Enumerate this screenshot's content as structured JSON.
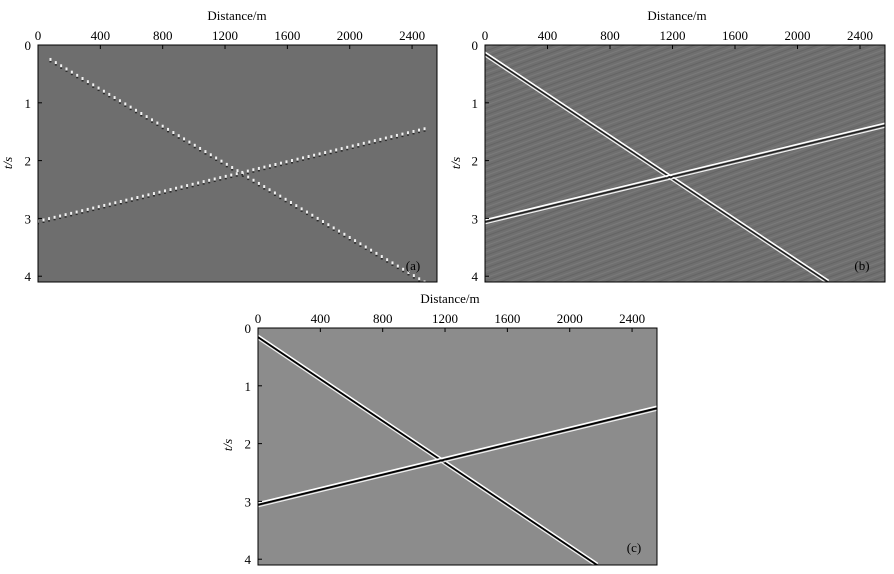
{
  "figure": {
    "x_axis_label": "Distance/m",
    "y_axis_label": "t/s"
  },
  "chart_data": [
    {
      "type": "seismic_section",
      "panel_label": "(a)",
      "style": "sparse_sampled_dots",
      "xlabel": "Distance/m",
      "ylabel": "t/s",
      "xlim": [
        0,
        2560
      ],
      "ylim": [
        4.1,
        0
      ],
      "x_ticks": [
        0,
        400,
        800,
        1200,
        1600,
        2000,
        2400
      ],
      "y_ticks": [
        0,
        1,
        2,
        3,
        4
      ],
      "background": "#6e6e6e",
      "events": [
        {
          "name": "",
          "x": [
            80,
            2480
          ],
          "t": [
            0.25,
            4.1
          ]
        },
        {
          "name": "",
          "x": [
            0,
            2480
          ],
          "t": [
            3.05,
            1.45
          ]
        }
      ]
    },
    {
      "type": "seismic_section",
      "panel_label": "(b)",
      "style": "noisy_continuous",
      "xlabel": "Distance/m",
      "ylabel": "t/s",
      "xlim": [
        0,
        2560
      ],
      "ylim": [
        4.1,
        0
      ],
      "x_ticks": [
        0,
        400,
        800,
        1200,
        1600,
        2000,
        2400
      ],
      "y_ticks": [
        0,
        1,
        2,
        3,
        4
      ],
      "background": "#6f6f6f",
      "events": [
        {
          "name": "",
          "x": [
            0,
            2200
          ],
          "t": [
            0.15,
            4.1
          ]
        },
        {
          "name": "",
          "x": [
            0,
            2560
          ],
          "t": [
            3.05,
            1.38
          ]
        }
      ]
    },
    {
      "type": "seismic_section",
      "panel_label": "(c)",
      "style": "reconstructed_clean",
      "xlabel": "Distance/m",
      "ylabel": "t/s",
      "xlim": [
        0,
        2560
      ],
      "ylim": [
        4.1,
        0
      ],
      "x_ticks": [
        0,
        400,
        800,
        1200,
        1600,
        2000,
        2400
      ],
      "y_ticks": [
        0,
        1,
        2,
        3,
        4
      ],
      "background": "#8c8c8c",
      "events": [
        {
          "name": "",
          "x": [
            0,
            2180
          ],
          "t": [
            0.15,
            4.1
          ]
        },
        {
          "name": "",
          "x": [
            0,
            2560
          ],
          "t": [
            3.05,
            1.38
          ]
        }
      ]
    }
  ]
}
